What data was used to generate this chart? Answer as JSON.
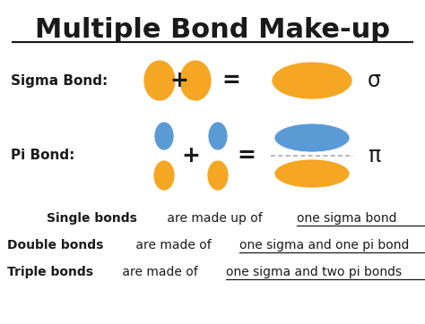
{
  "title": "Multiple Bond Make-up",
  "title_fontsize": 22,
  "background_color": "#ffffff",
  "orange_color": "#F5A623",
  "blue_color": "#5B9BD5",
  "text_color": "#1a1a1a",
  "sigma_label": "Sigma Bond:",
  "pi_label": "Pi Bond:",
  "line1_bold": "Single bonds",
  "line1_rest": " are made up of ",
  "line1_underline": "one sigma bond",
  "line1_end": ".",
  "line2_bold": "Double bonds",
  "line2_rest": " are made of ",
  "line2_underline": "one sigma and one pi bond",
  "line2_end": ".",
  "line3_bold": "Triple bonds",
  "line3_rest": " are made of ",
  "line3_underline": "one sigma and two pi bonds",
  "line3_end": "."
}
